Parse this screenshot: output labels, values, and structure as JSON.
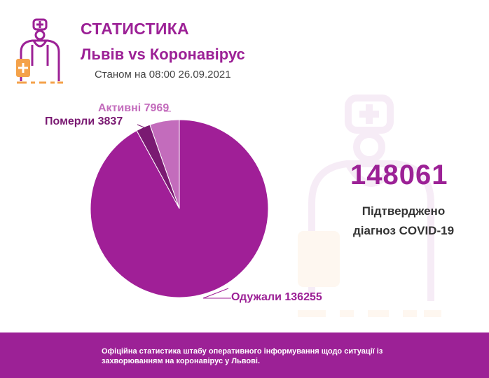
{
  "header": {
    "title": "СТАТИСТИКА",
    "subtitle": "Львів vs Коронавірус",
    "as_of": "Станом на 08:00 26.09.2021"
  },
  "logo_icon": "doctor-icon",
  "total": {
    "value": "148061",
    "label_line1": "Підтверджено",
    "label_line2": "діагноз COVID-19"
  },
  "footer": {
    "text": "Офіційна статистика штабу оперативного інформування щодо ситуації із захворюванням на коронавірус у Львові."
  },
  "colors": {
    "brand": "#9c2196",
    "recovered": "#a01f97",
    "deceased": "#7a1a72",
    "active": "#c36cbc"
  },
  "chart_data": {
    "type": "pie",
    "categories": [
      "Активні",
      "Померли",
      "Одужали"
    ],
    "values": [
      7969,
      3837,
      136255
    ],
    "labels": [
      "Активні 7969",
      "Померли 3837",
      "Одужали 136255"
    ],
    "colors": [
      "#c36cbc",
      "#7a1a72",
      "#a01f97"
    ]
  }
}
